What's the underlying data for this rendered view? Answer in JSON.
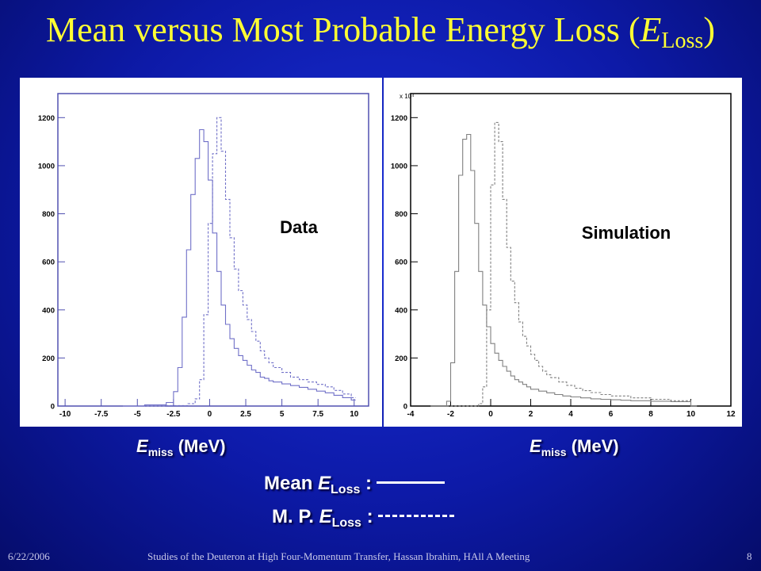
{
  "slide": {
    "title_main": "Mean versus Most Probable Energy Loss (",
    "title_var": "E",
    "title_sub": "Loss",
    "title_close": ")",
    "footer_date": "6/22/2006",
    "footer_center": "Studies of the Deuteron at High Four-Momentum Transfer, Hassan Ibrahim, HAll A Meeting",
    "footer_page": "8"
  },
  "xlabel": {
    "var": "E",
    "sub": "miss",
    "unit": " (MeV)"
  },
  "legend": {
    "mean_prefix": "Mean ",
    "mp_prefix": "M. P. ",
    "var": "E",
    "sub": "Loss",
    "sep": " :"
  },
  "colors": {
    "title": "#ffff33",
    "data_line": "#7070c8",
    "sim_line": "#808080",
    "frame_data": "#5050b0",
    "frame_sim": "#000000"
  },
  "chart_data": [
    {
      "type": "line",
      "label": "Data",
      "xlim": [
        -10.5,
        11
      ],
      "ylim": [
        0,
        1300
      ],
      "x_ticks": [
        "-10",
        "-7.5",
        "-5",
        "-2.5",
        "0",
        "2.5",
        "5",
        "7.5",
        "10"
      ],
      "y_ticks": [
        "0",
        "200",
        "400",
        "600",
        "800",
        "1000",
        "1200"
      ],
      "step_style": "histogram",
      "series": [
        {
          "style": "solid",
          "x": [
            -6,
            -4.5,
            -3,
            -2.5,
            -2.2,
            -1.9,
            -1.6,
            -1.3,
            -1.0,
            -0.7,
            -0.4,
            -0.1,
            0.2,
            0.5,
            0.8,
            1.1,
            1.4,
            1.7,
            2.0,
            2.3,
            2.6,
            2.9,
            3.2,
            3.5,
            3.8,
            4.1,
            4.4,
            5,
            5.6,
            6.2,
            6.8,
            7.4,
            8,
            8.6,
            9.2,
            9.8
          ],
          "y": [
            0,
            5,
            15,
            60,
            160,
            370,
            650,
            880,
            1030,
            1150,
            1100,
            940,
            720,
            560,
            420,
            340,
            280,
            240,
            210,
            190,
            170,
            150,
            140,
            120,
            115,
            105,
            100,
            92,
            85,
            78,
            70,
            62,
            55,
            45,
            35,
            25
          ]
        },
        {
          "style": "dashed",
          "x": [
            -6,
            -3,
            -1.5,
            -1.0,
            -0.7,
            -0.4,
            -0.1,
            0.2,
            0.5,
            0.8,
            1.1,
            1.4,
            1.7,
            2.0,
            2.3,
            2.6,
            2.9,
            3.2,
            3.5,
            3.8,
            4.1,
            4.4,
            5,
            5.6,
            6.2,
            6.8,
            7.4,
            8,
            8.6,
            9.2,
            9.8
          ],
          "y": [
            0,
            2,
            10,
            30,
            110,
            380,
            760,
            1050,
            1200,
            1060,
            860,
            700,
            570,
            480,
            420,
            360,
            310,
            270,
            230,
            200,
            180,
            160,
            140,
            120,
            110,
            100,
            90,
            80,
            65,
            50,
            35
          ]
        }
      ]
    },
    {
      "type": "line",
      "label": "Simulation",
      "xlim": [
        -4,
        12
      ],
      "ylim": [
        0,
        1300
      ],
      "y_multiplier": "x 10⁴",
      "x_ticks": [
        "-4",
        "-2",
        "0",
        "2",
        "4",
        "6",
        "8",
        "10",
        "12"
      ],
      "y_ticks": [
        "0",
        "200",
        "400",
        "600",
        "800",
        "1000",
        "1200"
      ],
      "step_style": "histogram",
      "series": [
        {
          "style": "solid",
          "x": [
            -3,
            -2.2,
            -2.0,
            -1.8,
            -1.6,
            -1.4,
            -1.2,
            -1.0,
            -0.8,
            -0.6,
            -0.4,
            -0.2,
            0,
            0.2,
            0.4,
            0.6,
            0.8,
            1.0,
            1.2,
            1.4,
            1.6,
            1.8,
            2.0,
            2.4,
            2.8,
            3.2,
            3.6,
            4.0,
            4.5,
            5,
            5.5,
            6,
            6.5,
            7,
            8,
            9,
            10
          ],
          "y": [
            0,
            20,
            180,
            560,
            960,
            1110,
            1130,
            980,
            760,
            560,
            420,
            330,
            260,
            220,
            190,
            165,
            145,
            125,
            110,
            100,
            90,
            80,
            70,
            62,
            55,
            48,
            42,
            38,
            34,
            30,
            28,
            26,
            24,
            22,
            20,
            18,
            0
          ]
        },
        {
          "style": "dashed",
          "x": [
            -3,
            -0.6,
            -0.4,
            -0.2,
            0,
            0.2,
            0.4,
            0.6,
            0.8,
            1.0,
            1.2,
            1.4,
            1.6,
            1.8,
            2.0,
            2.2,
            2.4,
            2.6,
            2.8,
            3.0,
            3.4,
            3.8,
            4.2,
            4.6,
            5,
            5.5,
            6,
            7,
            8,
            9,
            10
          ],
          "y": [
            0,
            10,
            80,
            400,
            920,
            1180,
            1100,
            860,
            660,
            520,
            430,
            350,
            290,
            250,
            215,
            190,
            165,
            145,
            130,
            118,
            100,
            86,
            74,
            64,
            56,
            48,
            42,
            34,
            28,
            22,
            0
          ]
        }
      ]
    }
  ]
}
